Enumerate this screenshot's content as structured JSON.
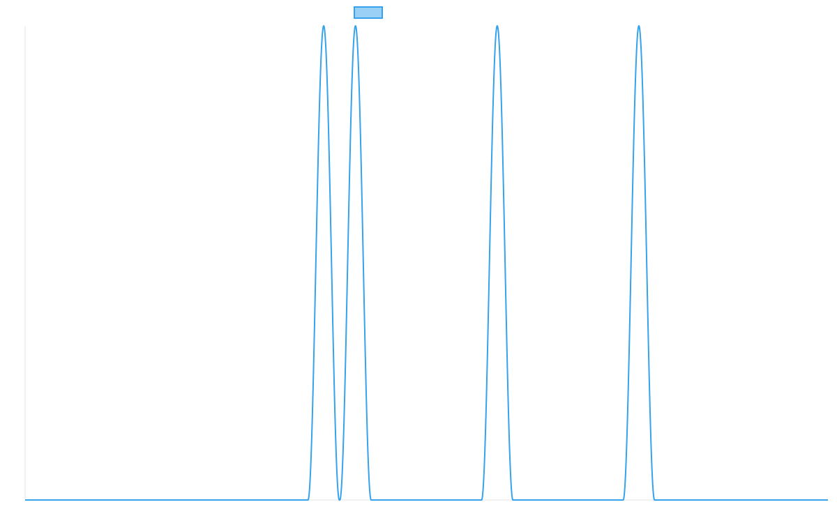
{
  "chart_data": {
    "type": "line",
    "title": "",
    "xlabel": "",
    "ylabel": "",
    "grid": false,
    "legend": "top-center",
    "xlim": [
      0,
      1
    ],
    "ylim": [
      0,
      1
    ],
    "series": [
      {
        "name": "",
        "color": "#36a2eb",
        "fill_color": "#9ad0f5",
        "peaks": [
          {
            "center": 0.3719,
            "half_width": 0.0195,
            "height": 1.0
          },
          {
            "center": 0.4115,
            "half_width": 0.0195,
            "height": 1.0
          },
          {
            "center": 0.5881,
            "half_width": 0.0195,
            "height": 1.0
          },
          {
            "center": 0.7645,
            "half_width": 0.0195,
            "height": 1.0
          }
        ],
        "baseline": 0
      }
    ]
  }
}
